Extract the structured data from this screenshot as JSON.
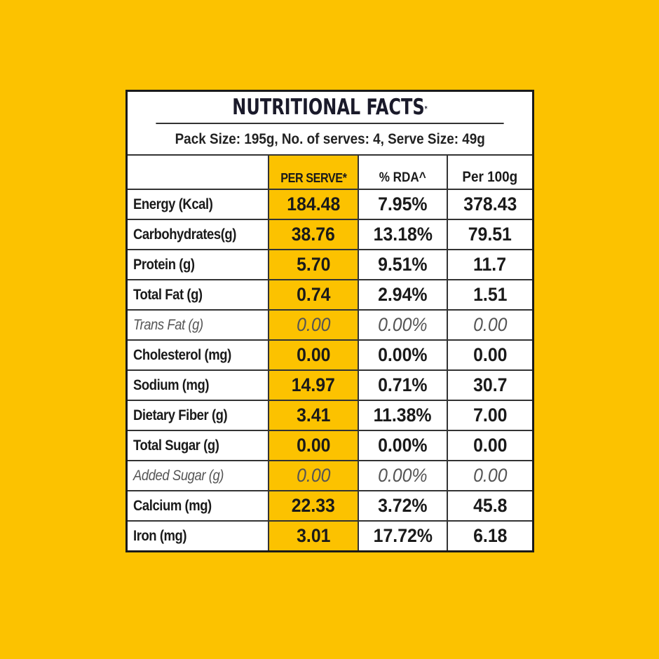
{
  "title": "NUTRITIONAL FACTS",
  "title_mark": "*",
  "pack_info": "Pack Size: 195g, No. of serves: 4, Serve Size: 49g",
  "columns": [
    "",
    "PER SERVE*",
    "% RDA^",
    "Per 100g"
  ],
  "rows": [
    {
      "nutrient": "Energy (Kcal)",
      "per_serve": "184.48",
      "rda": "7.95%",
      "per_100g": "378.43",
      "italic": false
    },
    {
      "nutrient": "Carbohydrates(g)",
      "per_serve": "38.76",
      "rda": "13.18%",
      "per_100g": "79.51",
      "italic": false
    },
    {
      "nutrient": "Protein (g)",
      "per_serve": "5.70",
      "rda": "9.51%",
      "per_100g": "11.7",
      "italic": false
    },
    {
      "nutrient": "Total Fat (g)",
      "per_serve": "0.74",
      "rda": "2.94%",
      "per_100g": "1.51",
      "italic": false
    },
    {
      "nutrient": "Trans Fat (g)",
      "per_serve": "0.00",
      "rda": "0.00%",
      "per_100g": "0.00",
      "italic": true
    },
    {
      "nutrient": "Cholesterol (mg)",
      "per_serve": "0.00",
      "rda": "0.00%",
      "per_100g": "0.00",
      "italic": false
    },
    {
      "nutrient": "Sodium (mg)",
      "per_serve": "14.97",
      "rda": "0.71%",
      "per_100g": "30.7",
      "italic": false
    },
    {
      "nutrient": "Dietary Fiber (g)",
      "per_serve": "3.41",
      "rda": "11.38%",
      "per_100g": "7.00",
      "italic": false
    },
    {
      "nutrient": "Total Sugar (g)",
      "per_serve": "0.00",
      "rda": "0.00%",
      "per_100g": "0.00",
      "italic": false
    },
    {
      "nutrient": "Added Sugar (g)",
      "per_serve": "0.00",
      "rda": "0.00%",
      "per_100g": "0.00",
      "italic": true
    },
    {
      "nutrient": "Calcium (mg)",
      "per_serve": "22.33",
      "rda": "3.72%",
      "per_100g": "45.8",
      "italic": false
    },
    {
      "nutrient": "Iron (mg)",
      "per_serve": "3.01",
      "rda": "17.72%",
      "per_100g": "6.18",
      "italic": false
    }
  ],
  "colors": {
    "background": "#fcc200",
    "highlight_column": "#fcc200",
    "border": "#1a1a1a",
    "panel": "#ffffff"
  }
}
